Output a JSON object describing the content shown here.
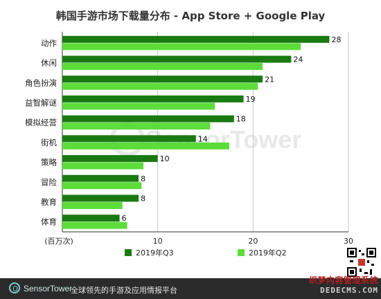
{
  "chart_data": {
    "type": "bar",
    "orientation": "horizontal",
    "title": "韩国手游市场下载量分布 - App Store + Google Play",
    "categories": [
      "动作",
      "休闲",
      "角色扮演",
      "益智解谜",
      "模拟经营",
      "街机",
      "策略",
      "冒险",
      "教育",
      "体育"
    ],
    "series": [
      {
        "name": "2019年Q3",
        "values": [
          28,
          24,
          21,
          19,
          18,
          14,
          10,
          8,
          8,
          6
        ],
        "color": "#1a7a12"
      },
      {
        "name": "2019年Q2",
        "values": [
          25,
          21,
          20.5,
          16,
          15.5,
          17.5,
          8.5,
          8.3,
          6.3,
          6.8
        ],
        "color": "#5ddc3a"
      }
    ],
    "data_labels_series": "2019年Q3",
    "xlabel": "(百万次)",
    "xlim": [
      0,
      30
    ],
    "xticks": [
      10,
      20,
      30
    ],
    "grid": true,
    "legend_position": "bottom-center"
  },
  "watermark": "SensorTower",
  "footer": {
    "brand": "SensorTower",
    "tagline": "全球领先的手游及应用情报平台"
  },
  "site_watermark": {
    "line1": "织梦内容管理系统",
    "line2": "DEDECMS.COM"
  }
}
